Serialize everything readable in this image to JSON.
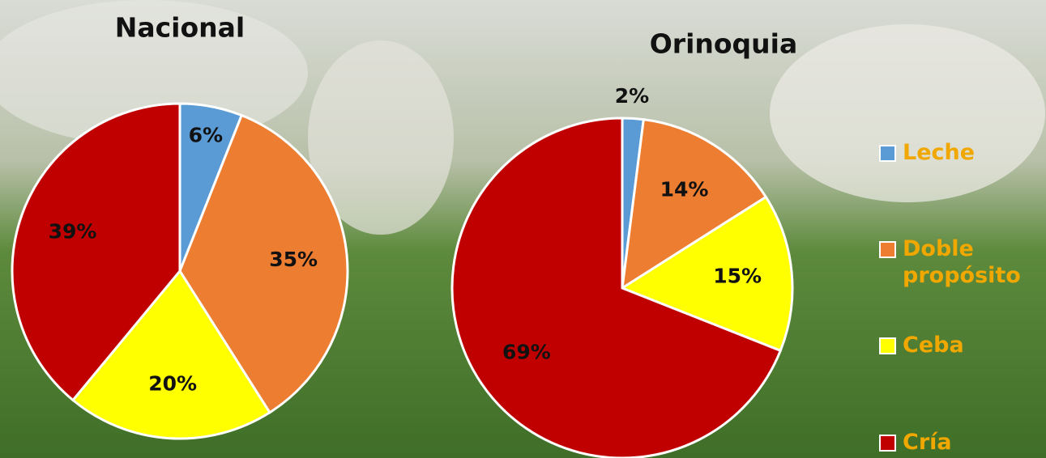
{
  "chart_data": [
    {
      "type": "pie",
      "title": "Nacional",
      "categories": [
        "Leche",
        "Doble propósito",
        "Ceba",
        "Cría"
      ],
      "colors": [
        "#5b9bd5",
        "#ed7d31",
        "#ffff00",
        "#c00000"
      ],
      "values": [
        6,
        35,
        20,
        39
      ],
      "value_labels": [
        "6%",
        "35%",
        "20%",
        "39%"
      ]
    },
    {
      "type": "pie",
      "title": "Orinoquia",
      "values": [
        2,
        14,
        15,
        69
      ],
      "value_labels": [
        "2%",
        "14%",
        "15%",
        "69%"
      ]
    }
  ]
}
